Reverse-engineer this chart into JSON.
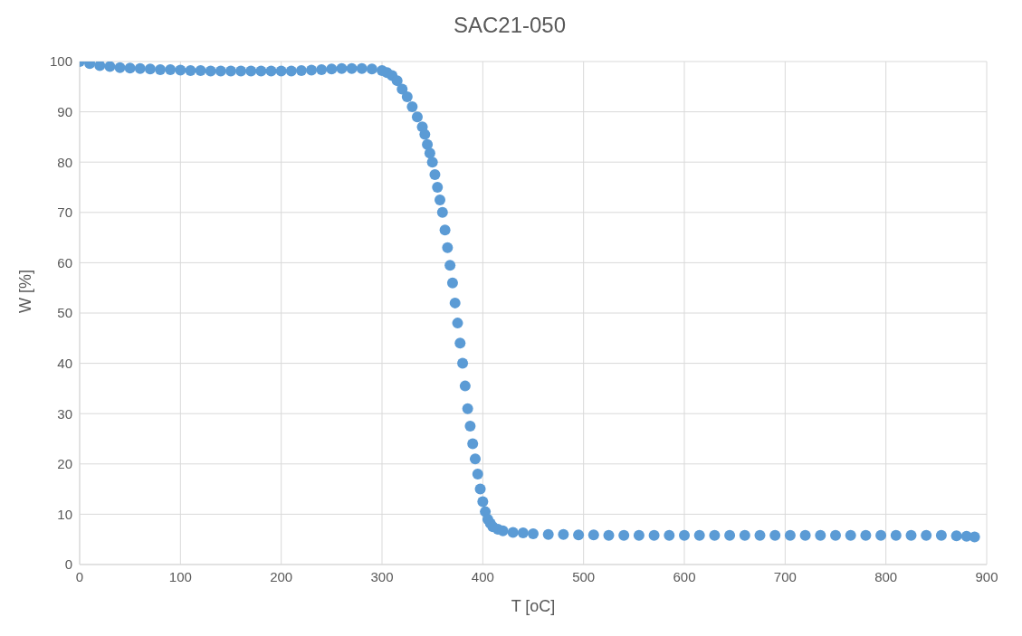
{
  "chart_data": {
    "type": "scatter",
    "title": "SAC21-050",
    "xlabel": "T [oC]",
    "ylabel": "W [%]",
    "x": [
      0,
      10,
      20,
      30,
      40,
      50,
      60,
      70,
      80,
      90,
      100,
      110,
      120,
      130,
      140,
      150,
      160,
      170,
      180,
      190,
      200,
      210,
      220,
      230,
      240,
      250,
      260,
      270,
      280,
      290,
      300,
      305,
      310,
      315,
      320,
      325,
      330,
      335,
      340,
      342.5,
      345,
      347.5,
      350,
      352.5,
      355,
      357.5,
      360,
      362.5,
      365,
      367.5,
      370,
      372.5,
      375,
      377.5,
      380,
      382.5,
      385,
      387.5,
      390,
      392.5,
      395,
      397.5,
      400,
      402.5,
      405,
      407.5,
      410,
      415,
      420,
      430,
      440,
      450,
      465,
      480,
      495,
      510,
      525,
      540,
      555,
      570,
      585,
      600,
      615,
      630,
      645,
      660,
      675,
      690,
      705,
      720,
      735,
      750,
      765,
      780,
      795,
      810,
      825,
      840,
      855,
      870,
      880,
      888
    ],
    "series": [
      {
        "color": "#5b9bd5",
        "values": [
          100,
          99.6,
          99.2,
          99,
          98.8,
          98.7,
          98.6,
          98.5,
          98.4,
          98.4,
          98.3,
          98.2,
          98.2,
          98.1,
          98.1,
          98.1,
          98.1,
          98.1,
          98.1,
          98.1,
          98.1,
          98.1,
          98.2,
          98.3,
          98.4,
          98.5,
          98.6,
          98.6,
          98.6,
          98.5,
          98.2,
          97.8,
          97.2,
          96.2,
          94.5,
          93,
          91,
          89,
          87,
          85.5,
          83.5,
          81.8,
          80,
          77.5,
          75,
          72.5,
          70,
          66.5,
          63,
          59.5,
          56,
          52,
          48,
          44,
          40,
          35.5,
          31,
          27.5,
          24,
          21,
          18,
          15,
          12.5,
          10.5,
          9,
          8.2,
          7.5,
          7,
          6.7,
          6.4,
          6.3,
          6.1,
          6,
          6,
          5.9,
          5.9,
          5.8,
          5.8,
          5.8,
          5.8,
          5.8,
          5.8,
          5.8,
          5.8,
          5.8,
          5.8,
          5.8,
          5.8,
          5.8,
          5.8,
          5.8,
          5.8,
          5.8,
          5.8,
          5.8,
          5.8,
          5.8,
          5.8,
          5.8,
          5.7,
          5.6,
          5.5
        ]
      }
    ],
    "xlim": [
      0,
      900
    ],
    "xticks": [
      0,
      100,
      200,
      300,
      400,
      500,
      600,
      700,
      800,
      900
    ],
    "ylim": [
      0,
      100
    ],
    "yticks": [
      0,
      10,
      20,
      30,
      40,
      50,
      60,
      70,
      80,
      90,
      100
    ],
    "grid": true,
    "marker": "circle"
  }
}
